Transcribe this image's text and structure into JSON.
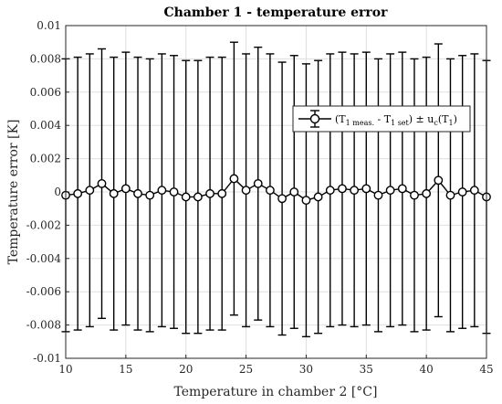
{
  "chart_data": {
    "type": "line",
    "title": "Chamber 1 - temperature error",
    "xlabel": "Temperature in chamber 2 [°C]",
    "ylabel": "Temperature error [K]",
    "xlim": [
      10,
      45
    ],
    "ylim": [
      -0.01,
      0.01
    ],
    "xticks": [
      10,
      15,
      20,
      25,
      30,
      35,
      40,
      45
    ],
    "yticks": [
      -0.01,
      -0.008,
      -0.006,
      -0.004,
      -0.002,
      0,
      0.002,
      0.004,
      0.006,
      0.008,
      0.01
    ],
    "xtick_labels": [
      "10",
      "15",
      "20",
      "25",
      "30",
      "35",
      "40",
      "45"
    ],
    "ytick_labels": [
      "-0.01",
      "-0.008",
      "-0.006",
      "-0.004",
      "-0.002",
      "0",
      "0.002",
      "0.004",
      "0.006",
      "0.008",
      "0.01"
    ],
    "grid": true,
    "legend_placement": "center-right",
    "legend": {
      "prefix": "(T",
      "sub1": "1 meas.",
      "mid": " - T",
      "sub2": "1 set",
      "pm": ") ± u",
      "sub3": "c",
      "paren_open": "(T",
      "sub4": "1",
      "close": ")"
    },
    "series": [
      {
        "x": [
          10,
          11,
          12,
          13,
          14,
          15,
          16,
          17,
          18,
          19,
          20,
          21,
          22,
          23,
          24,
          25,
          26,
          27,
          28,
          29,
          30,
          31,
          32,
          33,
          34,
          35,
          36,
          37,
          38,
          39,
          40,
          41,
          42,
          43,
          44,
          45
        ],
        "y": [
          -0.0002,
          -0.0001,
          0.0001,
          0.0005,
          -0.0001,
          0.0002,
          -0.0001,
          -0.0002,
          0.0001,
          0.0,
          -0.0003,
          -0.0003,
          -0.0001,
          -0.0001,
          0.0008,
          0.0001,
          0.0005,
          0.0001,
          -0.0004,
          0.0,
          -0.0005,
          -0.0003,
          0.0001,
          0.0002,
          0.0001,
          0.0002,
          -0.0002,
          0.0001,
          0.0002,
          -0.0002,
          -0.0001,
          0.0007,
          -0.0002,
          0.0,
          0.0001,
          -0.0003
        ],
        "err": [
          0.0082,
          0.0082,
          0.0082,
          0.0081,
          0.0082,
          0.0082,
          0.0082,
          0.0082,
          0.0082,
          0.0082,
          0.0082,
          0.0082,
          0.0082,
          0.0082,
          0.0082,
          0.0082,
          0.0082,
          0.0082,
          0.0082,
          0.0082,
          0.0082,
          0.0082,
          0.0082,
          0.0082,
          0.0082,
          0.0082,
          0.0082,
          0.0082,
          0.0082,
          0.0082,
          0.0082,
          0.0082,
          0.0082,
          0.0082,
          0.0082,
          0.0082
        ]
      }
    ]
  }
}
